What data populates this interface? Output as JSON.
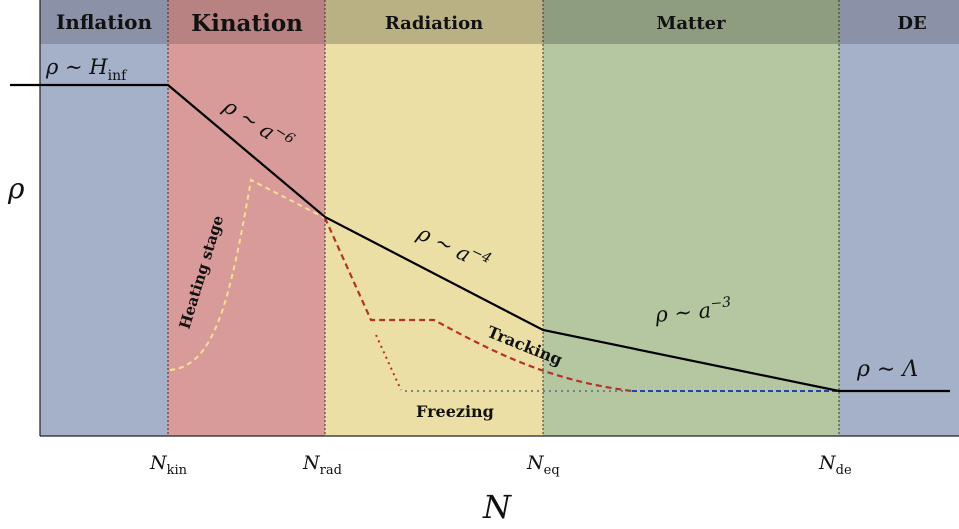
{
  "eras": [
    {
      "label": "Inflation",
      "bg": "#a5b0c9",
      "header": "#8b92a8"
    },
    {
      "label": "Kination",
      "bg": "#d99a9a",
      "header": "#b88282"
    },
    {
      "label": "Radiation",
      "bg": "#ebdfa5",
      "header": "#b9b184"
    },
    {
      "label": "Matter",
      "bg": "#b4c7a0",
      "header": "#8e9c80"
    },
    {
      "label": "DE",
      "bg": "#a5b0c9",
      "header": "#8b92a8"
    }
  ],
  "ylabel": "ρ",
  "xlabel": "N",
  "ticks": {
    "kin": {
      "base": "N",
      "sub": "kin"
    },
    "rad": {
      "base": "N",
      "sub": "rad"
    },
    "eq": {
      "base": "N",
      "sub": "eq"
    },
    "de": {
      "base": "N",
      "sub": "de"
    }
  },
  "annotations": {
    "inflation": {
      "base": "ρ ∼ H",
      "sub": "inf"
    },
    "kination": {
      "base": "ρ ∼ a",
      "sup": "−6"
    },
    "radiation": {
      "base": "ρ ∼ a",
      "sup": "−4"
    },
    "matter": {
      "base": "ρ ∼ a",
      "sup": "−3"
    },
    "de": "ρ ∼ Λ"
  },
  "labels": {
    "heating": "Heating stage",
    "tracking": "Tracking",
    "freezing": "Freezing"
  },
  "colors": {
    "background_curve": "#000000",
    "heating": "#f2e38c",
    "tracking": "#b3322a",
    "freezing": "#5a6a7a",
    "de_dashed": "#2244aa"
  }
}
